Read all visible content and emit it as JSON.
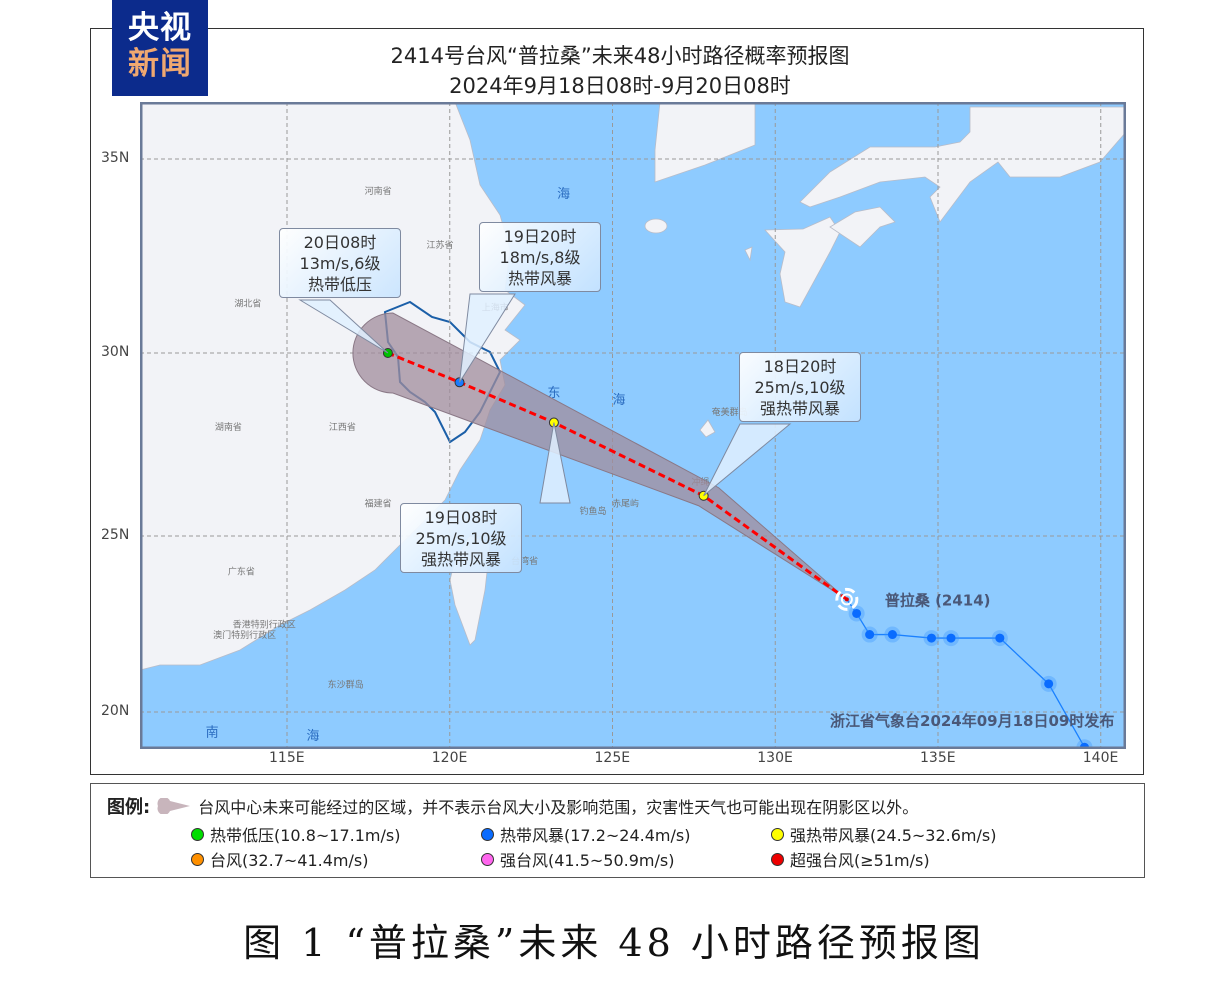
{
  "logo": {
    "line1": "央视",
    "line2": "新闻"
  },
  "title": {
    "line1": "2414号台风“普拉桑”未来48小时路径概率预报图",
    "line2": "2024年9月18日08时-9月20日08时"
  },
  "map": {
    "colors": {
      "sea": "#8ecbff",
      "land": "#f2f3f7",
      "cone": "#a08c9c",
      "track_forecast": "#ff0000",
      "track_past": "#1a80ff",
      "zhejiang_border": "#1b5fa8"
    },
    "lon_ticks": [
      "115E",
      "120E",
      "125E",
      "130E",
      "135E",
      "140E"
    ],
    "lat_ticks": [
      "35N",
      "30N",
      "25N",
      "20N"
    ],
    "labels": [
      {
        "text": "河南省",
        "lon": 117.8,
        "lat": 34.1
      },
      {
        "text": "江苏省",
        "lon": 119.7,
        "lat": 32.7
      },
      {
        "text": "上海市",
        "lon": 121.4,
        "lat": 31.1
      },
      {
        "text": "湖北省",
        "lon": 113.8,
        "lat": 31.2
      },
      {
        "text": "湖南省",
        "lon": 113.2,
        "lat": 27.9
      },
      {
        "text": "江西省",
        "lon": 116.7,
        "lat": 27.9
      },
      {
        "text": "福建省",
        "lon": 117.8,
        "lat": 25.8
      },
      {
        "text": "广东省",
        "lon": 113.6,
        "lat": 23.9
      },
      {
        "text": "香港特别行政区",
        "lon": 114.3,
        "lat": 22.4
      },
      {
        "text": "澳门特别行政区",
        "lon": 113.7,
        "lat": 22.1
      },
      {
        "text": "台湾省",
        "lon": 122.3,
        "lat": 24.2
      },
      {
        "text": "东沙群岛",
        "lon": 116.8,
        "lat": 20.7
      },
      {
        "text": "钓鱼岛",
        "lon": 124.4,
        "lat": 25.6
      },
      {
        "text": "赤尾屿",
        "lon": 125.4,
        "lat": 25.8
      },
      {
        "text": "冲绳",
        "lon": 127.7,
        "lat": 26.4
      },
      {
        "text": "奄美群岛",
        "lon": 128.6,
        "lat": 28.3
      }
    ],
    "sea_labels": [
      {
        "text": "海",
        "lon": 123.5,
        "lat": 34.0
      },
      {
        "text": "东",
        "lon": 123.2,
        "lat": 28.8
      },
      {
        "text": "海",
        "lon": 125.2,
        "lat": 28.6
      },
      {
        "text": "南",
        "lon": 112.7,
        "lat": 19.3
      },
      {
        "text": "海",
        "lon": 115.8,
        "lat": 19.2
      }
    ],
    "typhoon": {
      "name": "普拉桑 (2414)",
      "lon": 132.2,
      "lat": 23.2
    },
    "forecast": [
      {
        "time": "18日20时",
        "wind": "25m/s,10级",
        "category": "强热带风暴",
        "lon": 127.8,
        "lat": 26.1,
        "color": "#ffff00"
      },
      {
        "time": "19日08时",
        "wind": "25m/s,10级",
        "category": "强热带风暴",
        "lon": 123.2,
        "lat": 28.1,
        "color": "#ffff00"
      },
      {
        "time": "19日20时",
        "wind": "18m/s,8级",
        "category": "热带风暴",
        "lon": 120.3,
        "lat": 29.2,
        "color": "#1a7cff"
      },
      {
        "time": "20日08时",
        "wind": "13m/s,6级",
        "category": "热带低压",
        "lon": 118.1,
        "lat": 30.0,
        "color": "#00c000"
      }
    ],
    "past_track": [
      [
        132.5,
        22.8
      ],
      [
        132.9,
        22.2
      ],
      [
        133.6,
        22.2
      ],
      [
        134.8,
        22.1
      ],
      [
        135.4,
        22.1
      ],
      [
        136.9,
        22.1
      ],
      [
        138.4,
        20.8
      ],
      [
        139.5,
        19.0
      ]
    ],
    "issuer": "浙江省气象台2024年09月18日09时发布"
  },
  "legend": {
    "title": "图例:",
    "cone_desc": "台风中心未来可能经过的区域，并不表示台风大小及影响范围，灾害性天气也可能出现在阴影区以外。",
    "items": [
      {
        "label": "热带低压(10.8~17.1m/s)",
        "color": "#00dd00"
      },
      {
        "label": "热带风暴(17.2~24.4m/s)",
        "color": "#0a6cff"
      },
      {
        "label": "强热带风暴(24.5~32.6m/s)",
        "color": "#ffff00"
      },
      {
        "label": "台风(32.7~41.4m/s)",
        "color": "#ff9000"
      },
      {
        "label": "强台风(41.5~50.9m/s)",
        "color": "#ff66ee"
      },
      {
        "label": "超强台风(≥51m/s)",
        "color": "#ee0000"
      }
    ]
  },
  "caption": "图 1  “普拉桑”未来 48 小时路径预报图"
}
